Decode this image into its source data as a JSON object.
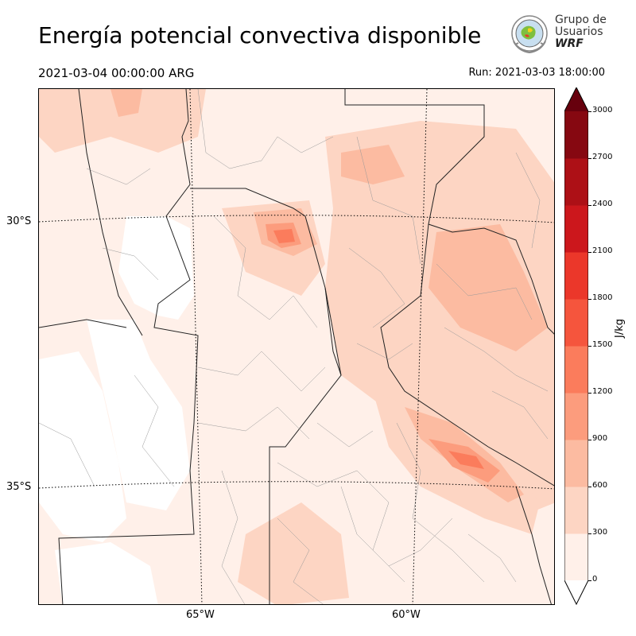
{
  "header": {
    "title": "Energía potencial convectiva disponible",
    "valid_time": "2021-03-04 00:00:00 ARG",
    "run_time": "Run: 2021-03-03 18:00:00"
  },
  "logo": {
    "line1": "Grupo de",
    "line2": "Usuarios",
    "line3": "WRF"
  },
  "map": {
    "lat_labels": [
      "30°S",
      "35°S"
    ],
    "lon_labels": [
      "65°W",
      "60°W"
    ]
  },
  "colorbar": {
    "unit": "J/kg",
    "ticks": [
      "0",
      "300",
      "600",
      "900",
      "1200",
      "1500",
      "1800",
      "2100",
      "2400",
      "2700",
      "3000"
    ],
    "colors": [
      "#fff0e9",
      "#fdd5c3",
      "#fcbba1",
      "#fc9c7d",
      "#fb7c5c",
      "#f5553d",
      "#eb372a",
      "#cc171c",
      "#ad1016",
      "#860811"
    ],
    "over_color": "#67000d"
  }
}
